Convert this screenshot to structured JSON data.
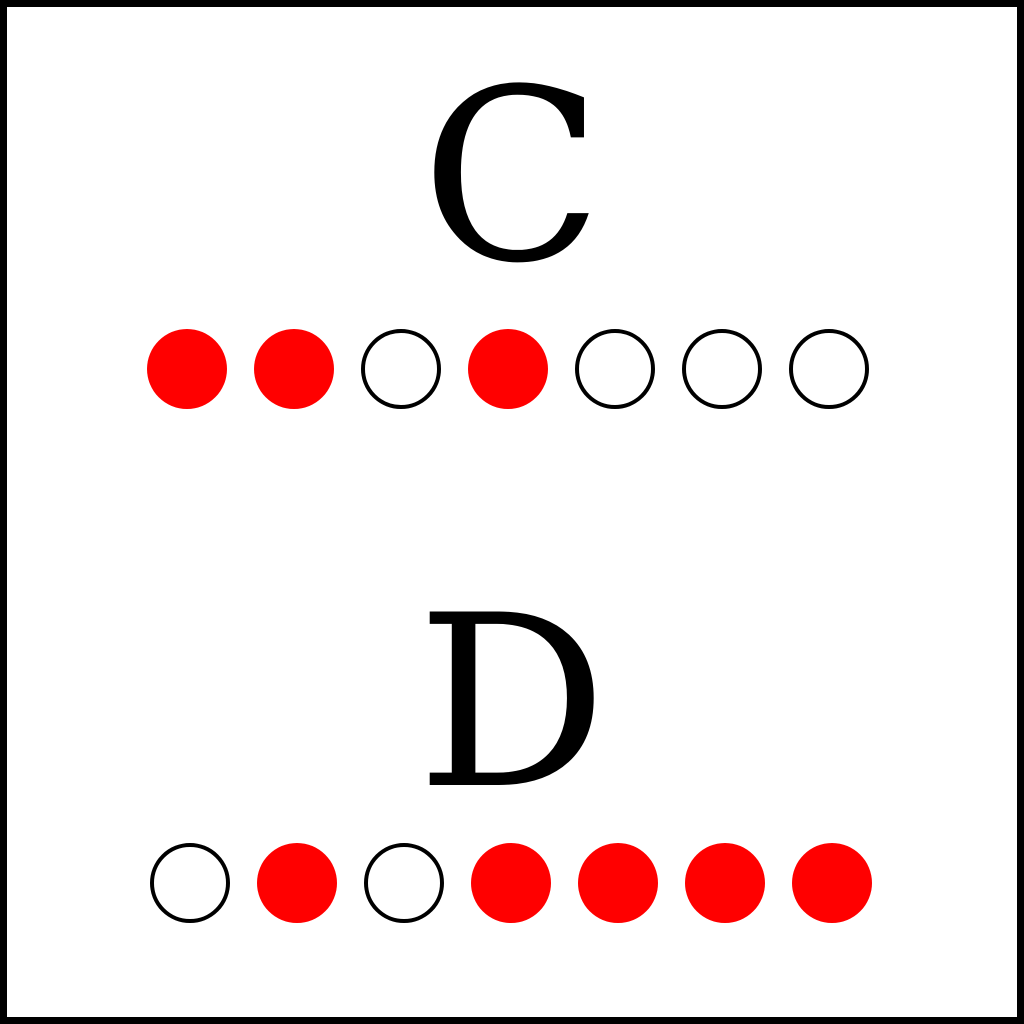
{
  "colors": {
    "filled": "#ff0000",
    "border": "#000000",
    "background": "#ffffff"
  },
  "groups": [
    {
      "letter": "C",
      "dots": [
        true,
        true,
        false,
        true,
        false,
        false,
        false
      ]
    },
    {
      "letter": "D",
      "dots": [
        false,
        true,
        false,
        true,
        true,
        true,
        true
      ]
    }
  ]
}
